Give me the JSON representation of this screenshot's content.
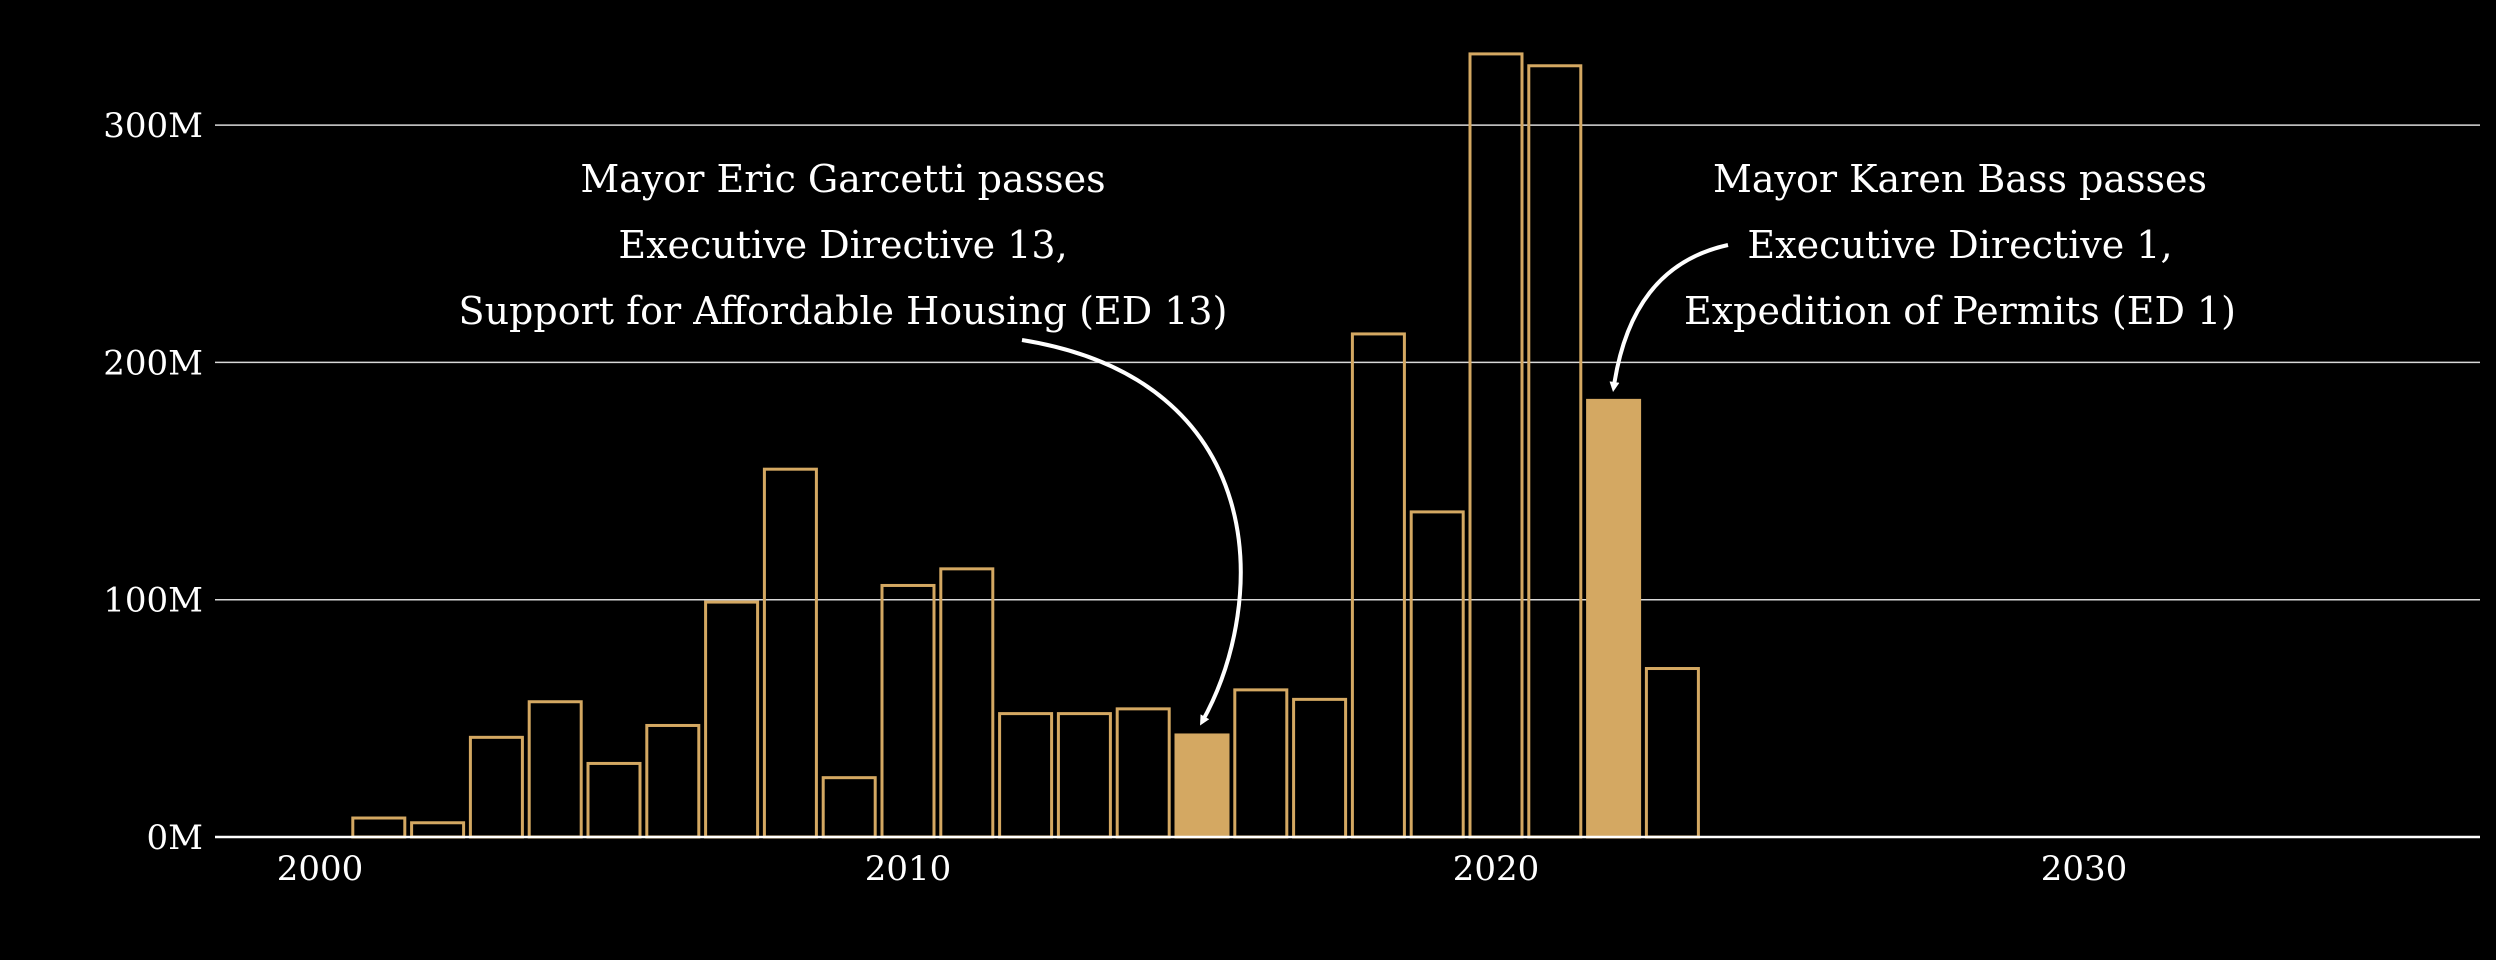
{
  "colors": {
    "background": "#000000",
    "bar": "#d4a862",
    "grid": "#d9d9d9",
    "axis": "#ffffff",
    "text": "#ffffff",
    "arrow": "#ffffff"
  },
  "chart_data": {
    "type": "bar",
    "title": "",
    "xlabel": "",
    "ylabel": "",
    "xlim": [
      1998,
      2037
    ],
    "ylim": [
      0,
      335
    ],
    "x_ticks": [
      2000,
      2010,
      2020,
      2030
    ],
    "x_tick_labels": [
      "2000",
      "2010",
      "2020",
      "2030"
    ],
    "y_ticks": [
      0,
      100,
      200,
      300
    ],
    "y_tick_labels": [
      "0M",
      "100M",
      "200M",
      "300M"
    ],
    "grid": "horizontal",
    "series": [
      {
        "x": [
          2001,
          2002,
          2003,
          2004,
          2005,
          2006,
          2007,
          2008,
          2009,
          2010,
          2011,
          2012,
          2013,
          2014,
          2015,
          2016,
          2017,
          2018,
          2019,
          2020,
          2021,
          2022,
          2023
        ],
        "values": [
          8,
          6,
          42,
          57,
          31,
          47,
          99,
          155,
          25,
          106,
          113,
          52,
          52,
          54,
          43,
          62,
          58,
          212,
          137,
          330,
          325,
          184,
          71
        ],
        "highlighted": [
          2015,
          2022
        ]
      }
    ],
    "annotations": [
      {
        "lines": [
          "Mayor Eric Garcetti passes",
          "Executive Directive 13,",
          "Support for Affordable Housing (ED 13)"
        ],
        "target_x": 2015
      },
      {
        "lines": [
          "Mayor Karen Bass passes",
          "Executive Directive 1,",
          "Expedition of Permits (ED 1)"
        ],
        "target_x": 2022
      }
    ]
  }
}
